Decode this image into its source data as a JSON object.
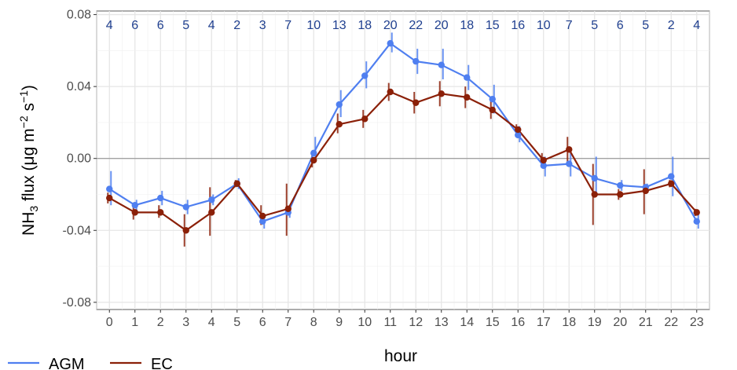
{
  "chart_data": {
    "type": "line",
    "xlabel": "hour",
    "ylabel": {
      "prefix": "NH",
      "prefix_sub": "3",
      "main": " flux (μg m",
      "exp1": "−2",
      "mid": " s",
      "exp2": "−1",
      "suffix": ")"
    },
    "x": [
      0,
      1,
      2,
      3,
      4,
      5,
      6,
      7,
      8,
      9,
      10,
      11,
      12,
      13,
      14,
      15,
      16,
      17,
      18,
      19,
      20,
      21,
      22,
      23
    ],
    "x_tick_labels": [
      "0",
      "1",
      "2",
      "3",
      "4",
      "5",
      "6",
      "7",
      "8",
      "9",
      "10",
      "11",
      "12",
      "13",
      "14",
      "15",
      "16",
      "17",
      "18",
      "19",
      "20",
      "21",
      "22",
      "23"
    ],
    "ylim": [
      -0.084,
      0.082
    ],
    "y_ticks": [
      -0.08,
      -0.04,
      0.0,
      0.04,
      0.08
    ],
    "y_tick_labels": [
      "-0.08",
      "-0.04",
      "0.00",
      "0.04",
      "0.08"
    ],
    "counts": [
      "4",
      "6",
      "6",
      "5",
      "4",
      "2",
      "3",
      "7",
      "10",
      "13",
      "18",
      "20",
      "22",
      "20",
      "18",
      "15",
      "16",
      "10",
      "7",
      "5",
      "6",
      "5",
      "2",
      "4"
    ],
    "grid": true,
    "zero_line": true,
    "legend_position": "bottom-left",
    "series": [
      {
        "name": "AGM",
        "color": "#4f7ff0",
        "values": [
          -0.017,
          -0.026,
          -0.022,
          -0.027,
          -0.023,
          -0.014,
          -0.035,
          -0.03,
          0.003,
          0.03,
          0.046,
          0.064,
          0.054,
          0.052,
          0.045,
          0.033,
          0.013,
          -0.004,
          -0.003,
          -0.011,
          -0.015,
          -0.016,
          -0.01,
          -0.035
        ],
        "lower": [
          -0.026,
          -0.029,
          -0.026,
          -0.031,
          -0.026,
          -0.017,
          -0.039,
          -0.033,
          -0.002,
          0.023,
          0.039,
          0.059,
          0.047,
          0.044,
          0.038,
          0.025,
          0.009,
          -0.01,
          -0.01,
          -0.019,
          -0.018,
          -0.018,
          -0.021,
          -0.039
        ],
        "upper": [
          -0.007,
          -0.023,
          -0.018,
          -0.023,
          -0.02,
          -0.011,
          -0.031,
          -0.027,
          0.012,
          0.038,
          0.054,
          0.07,
          0.061,
          0.061,
          0.052,
          0.041,
          0.018,
          0.001,
          0.003,
          0.001,
          -0.012,
          -0.014,
          0.001,
          -0.031
        ]
      },
      {
        "name": "EC",
        "color": "#8b2008",
        "values": [
          -0.022,
          -0.03,
          -0.03,
          -0.04,
          -0.03,
          -0.014,
          -0.032,
          -0.028,
          -0.001,
          0.019,
          0.022,
          0.037,
          0.031,
          0.036,
          0.034,
          0.027,
          0.016,
          -0.001,
          0.005,
          -0.02,
          -0.02,
          -0.018,
          -0.014,
          -0.03
        ],
        "lower": [
          -0.025,
          -0.034,
          -0.033,
          -0.049,
          -0.043,
          -0.016,
          -0.037,
          -0.043,
          -0.005,
          0.014,
          0.017,
          0.032,
          0.025,
          0.029,
          0.028,
          0.022,
          0.013,
          -0.004,
          -0.002,
          -0.037,
          -0.023,
          -0.031,
          -0.016,
          -0.032
        ],
        "upper": [
          -0.019,
          -0.026,
          -0.026,
          -0.031,
          -0.016,
          -0.012,
          -0.026,
          -0.014,
          0.004,
          0.025,
          0.027,
          0.042,
          0.037,
          0.043,
          0.04,
          0.032,
          0.019,
          0.003,
          0.012,
          -0.003,
          -0.017,
          -0.006,
          -0.012,
          -0.028
        ]
      }
    ]
  }
}
